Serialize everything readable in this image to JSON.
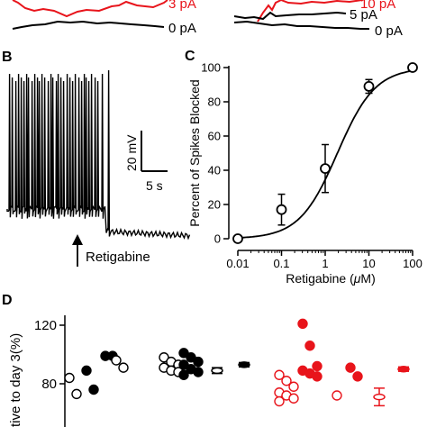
{
  "panel_A": {
    "left_labels": [
      "3 pA",
      "0 pA"
    ],
    "right_labels": [
      "10 pA",
      "5 pA",
      "0 pA"
    ]
  },
  "panel_B": {
    "letter": "B",
    "scale_voltage": "20 mV",
    "scale_time": "5 s",
    "arrow_label": "Retigabine",
    "trace_color": "#000000"
  },
  "panel_D": {
    "letter": "D",
    "ylabel": "tive to day 3(%)",
    "yticks": [
      "120",
      "80"
    ],
    "colors": {
      "control": "#000000",
      "treated": "#e8141b"
    }
  },
  "chart_data": [
    {
      "type": "scatter",
      "panel": "C",
      "letter": "C",
      "xlabel_prefix": "Retigabine (",
      "xlabel_unit": "μ",
      "xlabel_suffix": "M)",
      "ylabel": "Percent of Spikes Blocked",
      "x_scale": "log",
      "xlim": [
        0.01,
        100
      ],
      "ylim": [
        0,
        100
      ],
      "xticks": [
        "0.01",
        "0.1",
        "1",
        "10",
        "100"
      ],
      "yticks": [
        "0",
        "20",
        "40",
        "60",
        "80",
        "100"
      ],
      "series": [
        {
          "marker": "open-circle",
          "x": [
            0.01,
            0.1,
            1,
            10,
            100
          ],
          "y": [
            0,
            17,
            41,
            89,
            100
          ],
          "err": [
            0,
            9,
            14,
            4,
            1
          ]
        }
      ],
      "fit": {
        "model": "hill",
        "top": 100,
        "ec50": 1.9,
        "hill": 1.0
      }
    },
    {
      "type": "scatter",
      "panel": "D",
      "note": "values estimated from visible portion of the panel",
      "groups": [
        {
          "marker": "open-circle",
          "color": "#000000",
          "values": [
            84,
            73
          ]
        },
        {
          "marker": "filled-circle",
          "color": "#000000",
          "values": [
            89,
            76
          ]
        },
        {
          "marker": "filled-circle",
          "color": "#000000",
          "values": [
            99,
            99
          ]
        },
        {
          "marker": "open-circle",
          "color": "#000000",
          "values": [
            96,
            91
          ]
        },
        {
          "marker": "open-circle",
          "color": "#000000",
          "values": [
            98,
            95,
            93,
            91,
            89,
            88
          ]
        },
        {
          "marker": "filled-circle",
          "color": "#000000",
          "values": [
            101,
            98,
            95,
            93,
            90,
            88,
            86
          ]
        },
        {
          "marker": "mean-sem",
          "color": "#000000",
          "open": true,
          "values": [
            89
          ],
          "err": [
            2
          ]
        },
        {
          "marker": "mean-sem",
          "color": "#000000",
          "open": false,
          "values": [
            93
          ],
          "err": [
            1.5
          ]
        },
        {
          "marker": "open-circle",
          "color": "#e8141b",
          "values": [
            86,
            82,
            78,
            74,
            72,
            70,
            68
          ]
        },
        {
          "marker": "filled-circle",
          "color": "#e8141b",
          "values": [
            121,
            106,
            92,
            89,
            87,
            85
          ]
        },
        {
          "marker": "open-circle",
          "color": "#e8141b",
          "values": [
            72
          ]
        },
        {
          "marker": "filled-circle",
          "color": "#e8141b",
          "values": [
            91,
            85
          ]
        },
        {
          "marker": "mean-sem",
          "color": "#e8141b",
          "open": true,
          "values": [
            71
          ],
          "err": [
            6
          ]
        },
        {
          "marker": "mean-sem",
          "color": "#e8141b",
          "open": false,
          "values": [
            90
          ],
          "err": [
            1.5
          ]
        }
      ]
    }
  ]
}
